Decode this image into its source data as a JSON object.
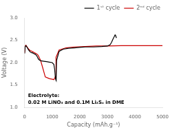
{
  "chart_data": {
    "type": "line",
    "xlabel": "Capacity (mAh.g⁻¹)",
    "ylabel": "Voltage (V)",
    "xlim": [
      0,
      5000
    ],
    "ylim": [
      1.0,
      3.0
    ],
    "xticks": [
      0,
      1000,
      2000,
      3000,
      4000,
      5000
    ],
    "yticks": [
      {
        "value": 1.0,
        "label": "1.0"
      },
      {
        "value": 1.5,
        "label": "1.5"
      },
      {
        "value": 2.0,
        "label": "2.0"
      },
      {
        "value": 2.5,
        "label": "2.5"
      },
      {
        "value": 3.0,
        "label": "3.0"
      }
    ],
    "annotations": [
      "Electrolyte:",
      "0.02 M LiNO₃ and 0.1M Li₂Sₓ in DME"
    ],
    "legend": "upper right",
    "grid": false,
    "series": [
      {
        "name": "1ˢᵗ cycle",
        "color": "#000000",
        "x": [
          0,
          20,
          50,
          100,
          150,
          200,
          250,
          280,
          310,
          340,
          370,
          400,
          430,
          460,
          500,
          550,
          600,
          700,
          800,
          900,
          1000,
          1060,
          1090,
          1110,
          1130,
          1140,
          1150,
          1160,
          1250,
          1400,
          1600,
          1800,
          2000,
          2200,
          2500,
          2800,
          3000,
          3100,
          3150,
          3200,
          3250,
          3280,
          3300,
          3320,
          3330
        ],
        "values": [
          2.2,
          2.35,
          2.38,
          2.33,
          2.28,
          2.24,
          2.22,
          2.22,
          2.21,
          2.2,
          2.19,
          2.18,
          2.16,
          2.13,
          2.08,
          2.05,
          2.04,
          2.03,
          2.02,
          2.01,
          2.0,
          1.96,
          1.85,
          1.7,
          1.62,
          1.6,
          1.62,
          2.05,
          2.25,
          2.3,
          2.32,
          2.33,
          2.34,
          2.35,
          2.35,
          2.36,
          2.37,
          2.4,
          2.45,
          2.52,
          2.58,
          2.62,
          2.6,
          2.57,
          2.55
        ]
      },
      {
        "name": "2ⁿᵈ cycle",
        "color": "#cc0000",
        "x": [
          0,
          20,
          50,
          100,
          150,
          200,
          240,
          270,
          300,
          330,
          360,
          390,
          420,
          450,
          480,
          510,
          540,
          580,
          650,
          750,
          900,
          1000,
          1060,
          1090,
          1110,
          1125,
          1130,
          1140,
          1250,
          1500,
          1800,
          2200,
          2600,
          3000,
          3500,
          4000,
          4500,
          5000
        ],
        "values": [
          2.22,
          2.37,
          2.39,
          2.34,
          2.3,
          2.27,
          2.26,
          2.25,
          2.24,
          2.23,
          2.22,
          2.21,
          2.2,
          2.19,
          2.17,
          2.14,
          2.1,
          2.05,
          1.9,
          1.68,
          1.64,
          1.63,
          1.62,
          1.65,
          1.68,
          1.66,
          1.64,
          2.12,
          2.28,
          2.33,
          2.35,
          2.36,
          2.37,
          2.37,
          2.38,
          2.38,
          2.38,
          2.38
        ]
      }
    ]
  }
}
